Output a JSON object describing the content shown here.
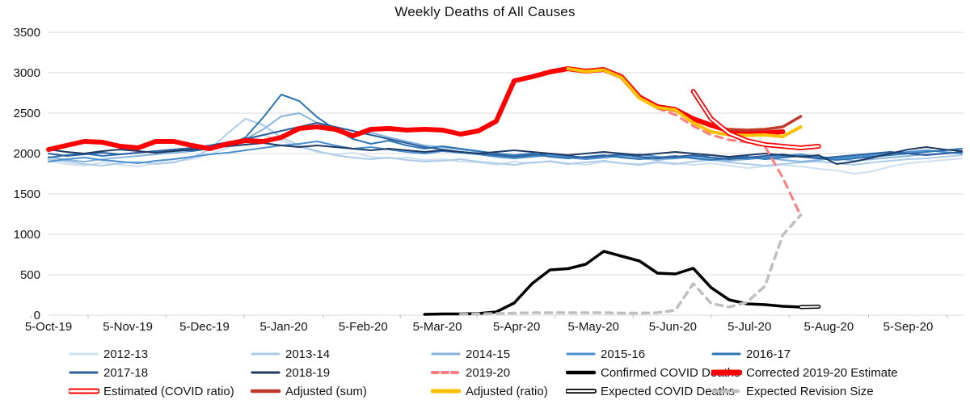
{
  "title": "Weekly Deaths of All Causes",
  "chart_data": {
    "type": "line",
    "title": "Weekly Deaths of All Causes",
    "grid": true,
    "y_axis": {
      "min": 0,
      "max": 3500,
      "step": 500,
      "ticks": [
        "0",
        "500",
        "1000",
        "1500",
        "2000",
        "2500",
        "3000",
        "3500"
      ]
    },
    "x_axis": {
      "labels": [
        "5-Oct-19",
        "5-Nov-19",
        "5-Dec-19",
        "5-Jan-20",
        "5-Feb-20",
        "5-Mar-20",
        "5-Apr-20",
        "5-May-20",
        "5-Jun-20",
        "5-Jul-20",
        "5-Aug-20",
        "5-Sep-20"
      ],
      "label_week_offsets": [
        0,
        4.43,
        8.71,
        13.14,
        17.57,
        21.71,
        26.14,
        30.43,
        34.86,
        39.14,
        43.57,
        48
      ],
      "weeks_shown": 51
    },
    "colors": {
      "grid": "#D9D9D9",
      "tick": "#BFBFBF",
      "accent_red": "#FF0000",
      "accent_yellow": "#FFC000",
      "accent_darkred": "#C0392B",
      "accent_pink": "#FF7C80",
      "accent_gray": "#BFBFBF"
    },
    "series": [
      {
        "name": "2012-13",
        "color": "#CFE0F1",
        "width": 2,
        "start_week": 0,
        "values": [
          1910,
          1870,
          1850,
          1890,
          1860,
          1840,
          1880,
          1900,
          1930,
          1990,
          2070,
          2170,
          2230,
          2160,
          2080,
          2020,
          1990,
          2010,
          1960,
          1940,
          1950,
          1920,
          1930,
          1900,
          1890,
          1860,
          1900,
          1880,
          1910,
          1880,
          1860,
          1900,
          1880,
          1870,
          1900,
          1880,
          1860,
          1880,
          1850,
          1820,
          1840,
          1860,
          1840,
          1810,
          1790,
          1750,
          1780,
          1840,
          1880,
          1900,
          1920,
          1940
        ]
      },
      {
        "name": "2013-14",
        "color": "#AECCE8",
        "width": 2,
        "start_week": 0,
        "values": [
          1930,
          1900,
          1870,
          1850,
          1880,
          1900,
          1870,
          1890,
          1950,
          2050,
          2250,
          2430,
          2350,
          2200,
          2100,
          2030,
          1980,
          1950,
          1930,
          1950,
          1920,
          1900,
          1910,
          1930,
          1900,
          1880,
          1860,
          1890,
          1900,
          1870,
          1890,
          1910,
          1880,
          1860,
          1890,
          1870,
          1900,
          1920,
          1890,
          1870,
          1850,
          1870,
          1890,
          1900,
          1880,
          1860,
          1890,
          1910,
          1930,
          1940,
          1960,
          1980
        ]
      },
      {
        "name": "2014-15",
        "color": "#86B4DC",
        "width": 2,
        "start_week": 0,
        "values": [
          1960,
          1920,
          1900,
          1930,
          1950,
          1970,
          1990,
          2010,
          2030,
          2060,
          2100,
          2180,
          2300,
          2460,
          2500,
          2380,
          2280,
          2220,
          2260,
          2200,
          2150,
          2100,
          2080,
          2050,
          2020,
          2000,
          1980,
          2000,
          1970,
          1950,
          1930,
          1950,
          1970,
          1940,
          1920,
          1940,
          1960,
          1930,
          1910,
          1930,
          1950,
          1920,
          1900,
          1920,
          1940,
          1910,
          1930,
          1950,
          1970,
          1990,
          2000,
          2010
        ]
      },
      {
        "name": "2015-16",
        "color": "#4A90D0",
        "width": 2,
        "start_week": 0,
        "values": [
          1900,
          1930,
          1950,
          1920,
          1900,
          1880,
          1910,
          1930,
          1960,
          1990,
          2010,
          2040,
          2070,
          2100,
          2120,
          2150,
          2100,
          2060,
          2080,
          2050,
          2020,
          2000,
          2030,
          2010,
          1990,
          1960,
          1940,
          1960,
          1980,
          1950,
          1930,
          1950,
          1970,
          1990,
          1960,
          1940,
          1960,
          1980,
          1950,
          1930,
          1950,
          1970,
          1990,
          1960,
          1940,
          1960,
          1980,
          2000,
          2020,
          2040,
          2020,
          2000
        ]
      },
      {
        "name": "2016-17",
        "color": "#2E75B6",
        "width": 2,
        "start_week": 0,
        "values": [
          1950,
          1980,
          2000,
          1970,
          1990,
          2010,
          2030,
          2050,
          2030,
          2060,
          2100,
          2200,
          2450,
          2730,
          2650,
          2450,
          2300,
          2180,
          2120,
          2160,
          2100,
          2060,
          2090,
          2060,
          2030,
          2000,
          1980,
          2000,
          1960,
          1940,
          1960,
          1980,
          1950,
          1930,
          1950,
          1970,
          1940,
          1920,
          1940,
          1960,
          1930,
          1950,
          1970,
          1940,
          1920,
          1940,
          1960,
          1980,
          2000,
          2020,
          2040,
          2060
        ]
      },
      {
        "name": "2017-18",
        "color": "#2A5F9E",
        "width": 2,
        "start_week": 0,
        "values": [
          2000,
          1970,
          1990,
          2010,
          1990,
          2010,
          2030,
          2050,
          2070,
          2100,
          2140,
          2180,
          2230,
          2280,
          2330,
          2380,
          2330,
          2280,
          2230,
          2180,
          2130,
          2080,
          2050,
          2020,
          2000,
          1980,
          1960,
          1980,
          2000,
          1970,
          1950,
          1970,
          1990,
          1960,
          1940,
          1960,
          1980,
          1950,
          1930,
          1950,
          1970,
          1990,
          1960,
          1940,
          1960,
          1980,
          2000,
          2020,
          2000,
          1980,
          2000,
          2020
        ]
      },
      {
        "name": "2018-19",
        "color": "#1F3A63",
        "width": 2,
        "start_week": 0,
        "values": [
          2050,
          2020,
          2000,
          2030,
          2050,
          2030,
          2010,
          2030,
          2050,
          2070,
          2090,
          2110,
          2130,
          2100,
          2080,
          2100,
          2080,
          2060,
          2040,
          2060,
          2040,
          2020,
          2040,
          2020,
          2000,
          2020,
          2040,
          2020,
          2000,
          1980,
          2000,
          2020,
          2000,
          1980,
          2000,
          2020,
          2000,
          1980,
          1960,
          1980,
          2000,
          1980,
          1960,
          1980,
          1870,
          1900,
          1950,
          2000,
          2050,
          2080,
          2050,
          2030
        ]
      },
      {
        "name": "Confirmed COVID Deaths",
        "color": "#000000",
        "width": 3.5,
        "start_week": 21,
        "values": [
          10,
          15,
          15,
          20,
          40,
          150,
          390,
          560,
          575,
          630,
          790,
          730,
          670,
          520,
          510,
          580,
          340,
          190,
          140,
          130,
          110,
          100
        ]
      },
      {
        "name": "Expected COVID Deaths",
        "color": "#000000",
        "width": 5,
        "hollow": true,
        "inner_width": 2,
        "start_week": 42,
        "values": [
          100,
          105
        ]
      },
      {
        "name": "Expected Revision Size",
        "color": "#BFBFBF",
        "width": 3.5,
        "dash": "8 7",
        "start_week": 23,
        "values": [
          10,
          15,
          20,
          25,
          30,
          30,
          30,
          30,
          30,
          25,
          25,
          30,
          60,
          390,
          145,
          100,
          160,
          360,
          990,
          1240
        ]
      },
      {
        "name": "2019-20",
        "color": "#FF7C80",
        "width": 3,
        "dash": "9 7",
        "start_week": 34,
        "values": [
          2560,
          2480,
          2340,
          2230,
          2170,
          2140,
          2090,
          1700,
          1230
        ]
      },
      {
        "name": "Corrected 2019-20 Estimate",
        "color": "#FF0000",
        "width": 6,
        "start_week": 0,
        "values": [
          2050,
          2100,
          2150,
          2140,
          2090,
          2070,
          2150,
          2150,
          2100,
          2060,
          2120,
          2160,
          2150,
          2200,
          2310,
          2330,
          2300,
          2220,
          2300,
          2310,
          2290,
          2300,
          2290,
          2240,
          2280,
          2400,
          2900,
          2950,
          3010,
          3050,
          3020,
          3040,
          2950,
          2700,
          2580,
          2545,
          2430,
          2350,
          2280,
          2260,
          2255,
          2270
        ]
      },
      {
        "name": "Adjusted (ratio)",
        "color": "#FFC000",
        "width": 4,
        "start_week": 29,
        "values": [
          3050,
          3015,
          3035,
          2940,
          2685,
          2570,
          2540,
          2380,
          2270,
          2230,
          2225,
          2230,
          2210,
          2330
        ]
      },
      {
        "name": "Adjusted (sum)",
        "color": "#C0392B",
        "width": 3.5,
        "start_week": 38,
        "values": [
          2300,
          2290,
          2300,
          2330,
          2460
        ]
      },
      {
        "name": "Estimated (COVID ratio)",
        "color": "#FF0000",
        "width": 6,
        "hollow": true,
        "inner_width": 2.5,
        "start_week": 36,
        "values": [
          2770,
          2430,
          2250,
          2160,
          2110,
          2090,
          2070,
          2090
        ]
      }
    ],
    "legend_rows": [
      [
        "2012-13",
        "2013-14",
        "2014-15",
        "2015-16",
        "2016-17"
      ],
      [
        "2017-18",
        "2018-19",
        "2019-20",
        "Confirmed COVID Deaths",
        "Corrected 2019-20 Estimate"
      ],
      [
        "Estimated (COVID ratio)",
        "Adjusted (sum)",
        "Adjusted (ratio)",
        "Expected COVID Deaths",
        "Expected Revision Size"
      ]
    ]
  }
}
